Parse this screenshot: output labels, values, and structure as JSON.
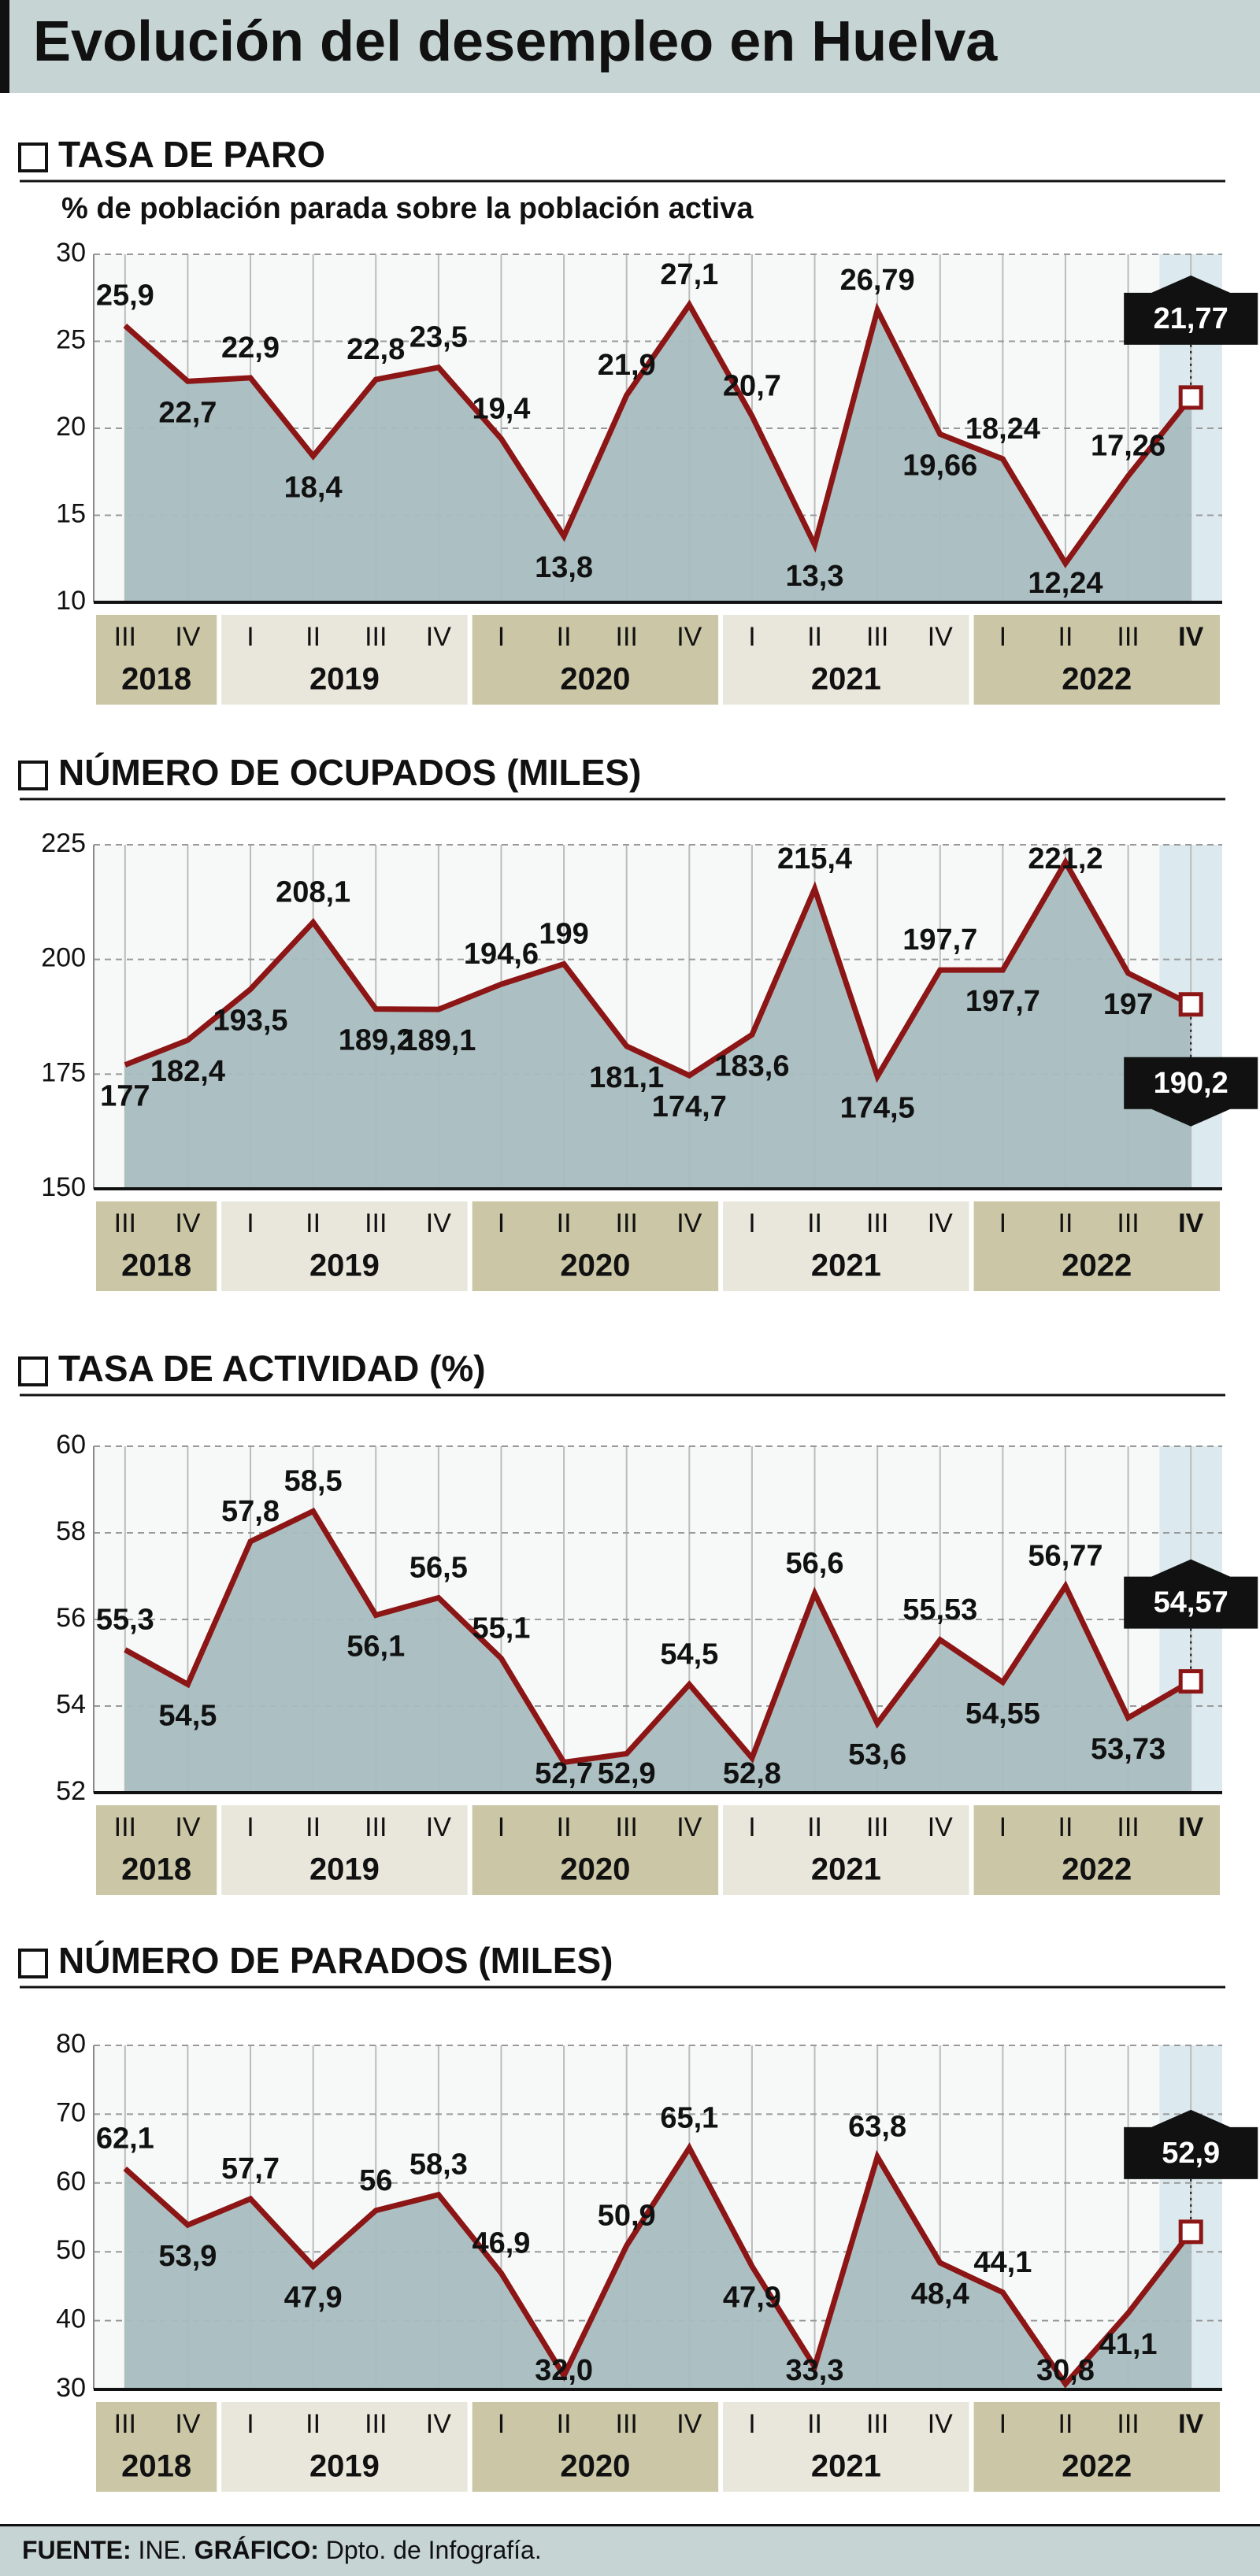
{
  "title": "Evolución del desempleo en Huelva",
  "chart_data": [
    {
      "type": "area",
      "title": "TASA DE PARO",
      "subtitle": "% de población parada sobre la población activa",
      "groups": [
        {
          "label": "2018",
          "categories": [
            "III",
            "IV"
          ]
        },
        {
          "label": "2019",
          "categories": [
            "I",
            "II",
            "III",
            "IV"
          ]
        },
        {
          "label": "2020",
          "categories": [
            "I",
            "II",
            "III",
            "IV"
          ]
        },
        {
          "label": "2021",
          "categories": [
            "I",
            "II",
            "III",
            "IV"
          ]
        },
        {
          "label": "2022",
          "categories": [
            "I",
            "II",
            "III",
            "IV"
          ]
        }
      ],
      "values": [
        25.9,
        22.7,
        22.9,
        18.4,
        22.8,
        23.5,
        19.4,
        13.8,
        21.9,
        27.1,
        20.7,
        13.3,
        26.79,
        19.66,
        18.24,
        12.24,
        17.26,
        21.77
      ],
      "value_labels": [
        "25,9",
        "22,7",
        "22,9",
        "18,4",
        "22,8",
        "23,5",
        "19,4",
        "13,8",
        "21,9",
        "27,1",
        "20,7",
        "13,3",
        "26,79",
        "19,66",
        "18,24",
        "12,24",
        "17,26",
        "21,77"
      ],
      "ylim": [
        10,
        30
      ],
      "yticks": [
        10,
        15,
        20,
        25,
        30
      ],
      "grid": true,
      "color": "#8c1515",
      "area_color": "#a8bdc0"
    },
    {
      "type": "area",
      "title": "NÚMERO DE OCUPADOS (MILES)",
      "groups": [
        {
          "label": "2018",
          "categories": [
            "III",
            "IV"
          ]
        },
        {
          "label": "2019",
          "categories": [
            "I",
            "II",
            "III",
            "IV"
          ]
        },
        {
          "label": "2020",
          "categories": [
            "I",
            "II",
            "III",
            "IV"
          ]
        },
        {
          "label": "2021",
          "categories": [
            "I",
            "II",
            "III",
            "IV"
          ]
        },
        {
          "label": "2022",
          "categories": [
            "I",
            "II",
            "III",
            "IV"
          ]
        }
      ],
      "values": [
        177,
        182.4,
        193.5,
        208.1,
        189.2,
        189.1,
        194.6,
        199,
        181.1,
        174.7,
        183.6,
        215.4,
        174.5,
        197.7,
        197.7,
        221.2,
        197,
        190.2
      ],
      "value_labels": [
        "177",
        "182,4",
        "193,5",
        "208,1",
        "189,2",
        "189,1",
        "194,6",
        "199",
        "181,1",
        "174,7",
        "183,6",
        "215,4",
        "174,5",
        "197,7",
        "197,7",
        "221,2",
        "197",
        "190,2"
      ],
      "ylim": [
        150,
        225
      ],
      "yticks": [
        150,
        175,
        200,
        225
      ],
      "grid": true,
      "color": "#8c1515",
      "area_color": "#a8bdc0"
    },
    {
      "type": "area",
      "title": "TASA DE ACTIVIDAD (%)",
      "groups": [
        {
          "label": "2018",
          "categories": [
            "III",
            "IV"
          ]
        },
        {
          "label": "2019",
          "categories": [
            "I",
            "II",
            "III",
            "IV"
          ]
        },
        {
          "label": "2020",
          "categories": [
            "I",
            "II",
            "III",
            "IV"
          ]
        },
        {
          "label": "2021",
          "categories": [
            "I",
            "II",
            "III",
            "IV"
          ]
        },
        {
          "label": "2022",
          "categories": [
            "I",
            "II",
            "III",
            "IV"
          ]
        }
      ],
      "values": [
        55.3,
        54.5,
        57.8,
        58.5,
        56.1,
        56.5,
        55.1,
        52.7,
        52.9,
        54.5,
        52.8,
        56.6,
        53.6,
        55.53,
        54.55,
        56.77,
        53.73,
        54.57
      ],
      "value_labels": [
        "55,3",
        "54,5",
        "57,8",
        "58,5",
        "56,1",
        "56,5",
        "55,1",
        "52,7",
        "52,9",
        "54,5",
        "52,8",
        "56,6",
        "53,6",
        "55,53",
        "54,55",
        "56,77",
        "53,73",
        "54,57"
      ],
      "ylim": [
        52,
        60
      ],
      "yticks": [
        52,
        54,
        56,
        58,
        60
      ],
      "grid": true,
      "color": "#8c1515",
      "area_color": "#a8bdc0"
    },
    {
      "type": "area",
      "title": "NÚMERO DE PARADOS (MILES)",
      "groups": [
        {
          "label": "2018",
          "categories": [
            "III",
            "IV"
          ]
        },
        {
          "label": "2019",
          "categories": [
            "I",
            "II",
            "III",
            "IV"
          ]
        },
        {
          "label": "2020",
          "categories": [
            "I",
            "II",
            "III",
            "IV"
          ]
        },
        {
          "label": "2021",
          "categories": [
            "I",
            "II",
            "III",
            "IV"
          ]
        },
        {
          "label": "2022",
          "categories": [
            "I",
            "II",
            "III",
            "IV"
          ]
        }
      ],
      "values": [
        62.1,
        53.9,
        57.7,
        47.9,
        56,
        58.3,
        46.9,
        32.0,
        50.9,
        65.1,
        47.9,
        33.3,
        63.8,
        48.4,
        44.1,
        30.8,
        41.1,
        52.9
      ],
      "value_labels": [
        "62,1",
        "53,9",
        "57,7",
        "47,9",
        "56",
        "58,3",
        "46,9",
        "32,0",
        "50,9",
        "65,1",
        "47,9",
        "33,3",
        "63,8",
        "48,4",
        "44,1",
        "30,8",
        "41,1",
        "52,9"
      ],
      "ylim": [
        30,
        80
      ],
      "yticks": [
        30,
        40,
        50,
        60,
        70,
        80
      ],
      "grid": true,
      "color": "#8c1515",
      "area_color": "#a8bdc0"
    }
  ],
  "footer": {
    "source_label": "FUENTE:",
    "source": "INE.",
    "credit_label": "GRÁFICO:",
    "credit": "Dpto. de Infografía."
  }
}
